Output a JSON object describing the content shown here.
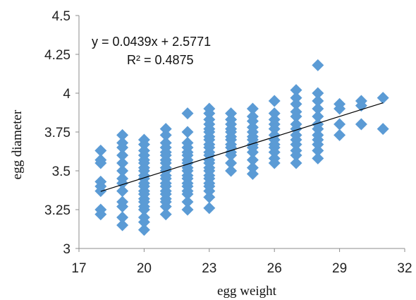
{
  "chart_data": {
    "type": "scatter",
    "xlabel": "egg weight",
    "ylabel": "egg diameter",
    "xlim": [
      17,
      32
    ],
    "ylim": [
      3,
      4.5
    ],
    "xticks": [
      "17",
      "20",
      "23",
      "26",
      "29",
      "32"
    ],
    "yticks": [
      "3",
      "3.25",
      "3.5",
      "3.75",
      "4",
      "4.25",
      "4.5"
    ],
    "grid": false,
    "marker_color": "#5b9bd5",
    "trendline_color": "#000000",
    "equation": "y = 0.0439x + 2.5771",
    "r_squared": "R² = 0.4875",
    "trendline": {
      "slope": 0.0439,
      "intercept": 2.5771,
      "x_range": [
        18,
        31
      ]
    },
    "points": [
      [
        18,
        3.63
      ],
      [
        18,
        3.57
      ],
      [
        18,
        3.55
      ],
      [
        18,
        3.43
      ],
      [
        18,
        3.4
      ],
      [
        18,
        3.37
      ],
      [
        18,
        3.25
      ],
      [
        18,
        3.22
      ],
      [
        19,
        3.73
      ],
      [
        19,
        3.68
      ],
      [
        19,
        3.65
      ],
      [
        19,
        3.6
      ],
      [
        19,
        3.55
      ],
      [
        19,
        3.5
      ],
      [
        19,
        3.45
      ],
      [
        19,
        3.42
      ],
      [
        19,
        3.37
      ],
      [
        19,
        3.3
      ],
      [
        19,
        3.27
      ],
      [
        19,
        3.2
      ],
      [
        19,
        3.15
      ],
      [
        20,
        3.7
      ],
      [
        20,
        3.67
      ],
      [
        20,
        3.63
      ],
      [
        20,
        3.6
      ],
      [
        20,
        3.57
      ],
      [
        20,
        3.55
      ],
      [
        20,
        3.52
      ],
      [
        20,
        3.5
      ],
      [
        20,
        3.47
      ],
      [
        20,
        3.45
      ],
      [
        20,
        3.42
      ],
      [
        20,
        3.4
      ],
      [
        20,
        3.37
      ],
      [
        20,
        3.35
      ],
      [
        20,
        3.32
      ],
      [
        20,
        3.3
      ],
      [
        20,
        3.27
      ],
      [
        20,
        3.25
      ],
      [
        20,
        3.2
      ],
      [
        20,
        3.17
      ],
      [
        20,
        3.12
      ],
      [
        21,
        3.77
      ],
      [
        21,
        3.73
      ],
      [
        21,
        3.68
      ],
      [
        21,
        3.65
      ],
      [
        21,
        3.62
      ],
      [
        21,
        3.6
      ],
      [
        21,
        3.57
      ],
      [
        21,
        3.55
      ],
      [
        21,
        3.52
      ],
      [
        21,
        3.5
      ],
      [
        21,
        3.47
      ],
      [
        21,
        3.45
      ],
      [
        21,
        3.42
      ],
      [
        21,
        3.4
      ],
      [
        21,
        3.37
      ],
      [
        21,
        3.35
      ],
      [
        21,
        3.32
      ],
      [
        21,
        3.3
      ],
      [
        21,
        3.27
      ],
      [
        21,
        3.22
      ],
      [
        22,
        3.87
      ],
      [
        22,
        3.75
      ],
      [
        22,
        3.68
      ],
      [
        22,
        3.65
      ],
      [
        22,
        3.62
      ],
      [
        22,
        3.6
      ],
      [
        22,
        3.57
      ],
      [
        22,
        3.55
      ],
      [
        22,
        3.52
      ],
      [
        22,
        3.5
      ],
      [
        22,
        3.47
      ],
      [
        22,
        3.45
      ],
      [
        22,
        3.42
      ],
      [
        22,
        3.4
      ],
      [
        22,
        3.37
      ],
      [
        22,
        3.35
      ],
      [
        22,
        3.3
      ],
      [
        22,
        3.25
      ],
      [
        23,
        3.9
      ],
      [
        23,
        3.87
      ],
      [
        23,
        3.83
      ],
      [
        23,
        3.8
      ],
      [
        23,
        3.77
      ],
      [
        23,
        3.75
      ],
      [
        23,
        3.72
      ],
      [
        23,
        3.7
      ],
      [
        23,
        3.67
      ],
      [
        23,
        3.65
      ],
      [
        23,
        3.62
      ],
      [
        23,
        3.6
      ],
      [
        23,
        3.57
      ],
      [
        23,
        3.55
      ],
      [
        23,
        3.52
      ],
      [
        23,
        3.5
      ],
      [
        23,
        3.47
      ],
      [
        23,
        3.45
      ],
      [
        23,
        3.42
      ],
      [
        23,
        3.4
      ],
      [
        23,
        3.37
      ],
      [
        23,
        3.33
      ],
      [
        23,
        3.26
      ],
      [
        24,
        3.87
      ],
      [
        24,
        3.83
      ],
      [
        24,
        3.8
      ],
      [
        24,
        3.77
      ],
      [
        24,
        3.75
      ],
      [
        24,
        3.72
      ],
      [
        24,
        3.7
      ],
      [
        24,
        3.67
      ],
      [
        24,
        3.65
      ],
      [
        24,
        3.62
      ],
      [
        24,
        3.6
      ],
      [
        24,
        3.55
      ],
      [
        24,
        3.5
      ],
      [
        25,
        3.9
      ],
      [
        25,
        3.85
      ],
      [
        25,
        3.82
      ],
      [
        25,
        3.78
      ],
      [
        25,
        3.75
      ],
      [
        25,
        3.72
      ],
      [
        25,
        3.7
      ],
      [
        25,
        3.67
      ],
      [
        25,
        3.65
      ],
      [
        25,
        3.62
      ],
      [
        25,
        3.57
      ],
      [
        25,
        3.52
      ],
      [
        25,
        3.48
      ],
      [
        26,
        3.95
      ],
      [
        26,
        3.87
      ],
      [
        26,
        3.83
      ],
      [
        26,
        3.8
      ],
      [
        26,
        3.77
      ],
      [
        26,
        3.73
      ],
      [
        26,
        3.7
      ],
      [
        26,
        3.67
      ],
      [
        26,
        3.65
      ],
      [
        26,
        3.62
      ],
      [
        26,
        3.58
      ],
      [
        26,
        3.55
      ],
      [
        27,
        4.02
      ],
      [
        27,
        3.97
      ],
      [
        27,
        3.93
      ],
      [
        27,
        3.88
      ],
      [
        27,
        3.85
      ],
      [
        27,
        3.8
      ],
      [
        27,
        3.77
      ],
      [
        27,
        3.73
      ],
      [
        27,
        3.7
      ],
      [
        27,
        3.67
      ],
      [
        27,
        3.63
      ],
      [
        27,
        3.6
      ],
      [
        27,
        3.55
      ],
      [
        28,
        4.18
      ],
      [
        28,
        4.0
      ],
      [
        28,
        3.95
      ],
      [
        28,
        3.9
      ],
      [
        28,
        3.85
      ],
      [
        28,
        3.8
      ],
      [
        28,
        3.77
      ],
      [
        28,
        3.73
      ],
      [
        28,
        3.7
      ],
      [
        28,
        3.67
      ],
      [
        28,
        3.63
      ],
      [
        28,
        3.58
      ],
      [
        29,
        3.93
      ],
      [
        29,
        3.9
      ],
      [
        29,
        3.8
      ],
      [
        29,
        3.73
      ],
      [
        30,
        3.95
      ],
      [
        30,
        3.92
      ],
      [
        30,
        3.8
      ],
      [
        31,
        3.97
      ],
      [
        31,
        3.77
      ]
    ]
  }
}
